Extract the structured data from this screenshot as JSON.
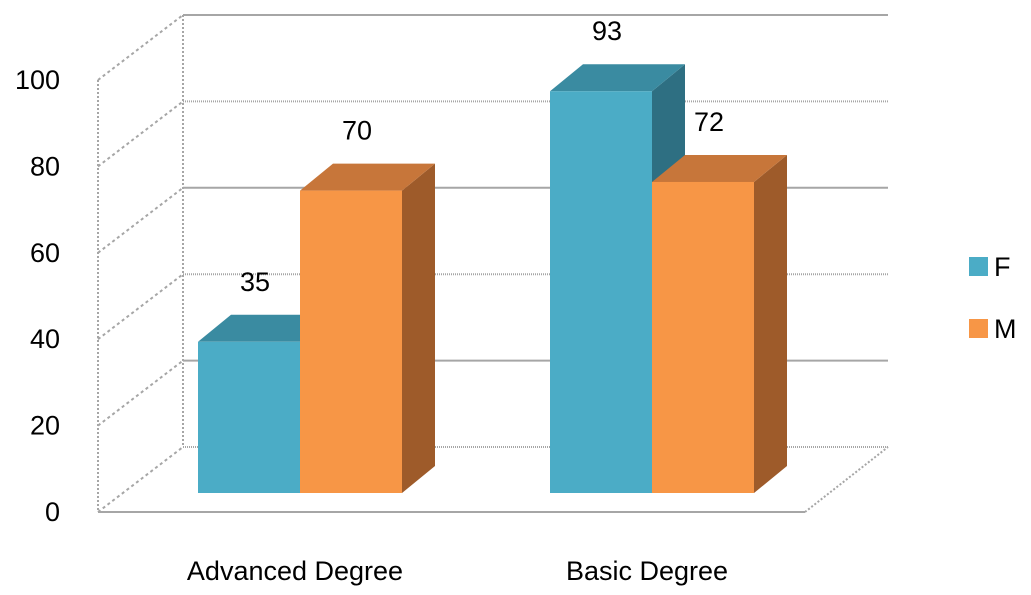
{
  "chart_data": {
    "type": "bar",
    "title": "",
    "xlabel": "",
    "ylabel": "",
    "categories": [
      "Advanced Degree",
      "Basic Degree"
    ],
    "series": [
      {
        "name": "F",
        "values": [
          35,
          93
        ],
        "color": "#4BACC6",
        "shade": "#2E6F82",
        "top": "#3A8BA1"
      },
      {
        "name": "M",
        "values": [
          70,
          72
        ],
        "color": "#F79646",
        "shade": "#9E5B2A",
        "top": "#C7763A"
      }
    ],
    "ylim": [
      0,
      100
    ],
    "yticks": [
      "0",
      "20",
      "40",
      "60",
      "80",
      "100"
    ],
    "grid": true,
    "three_d": true,
    "legend_position": "right",
    "data_labels": true
  }
}
